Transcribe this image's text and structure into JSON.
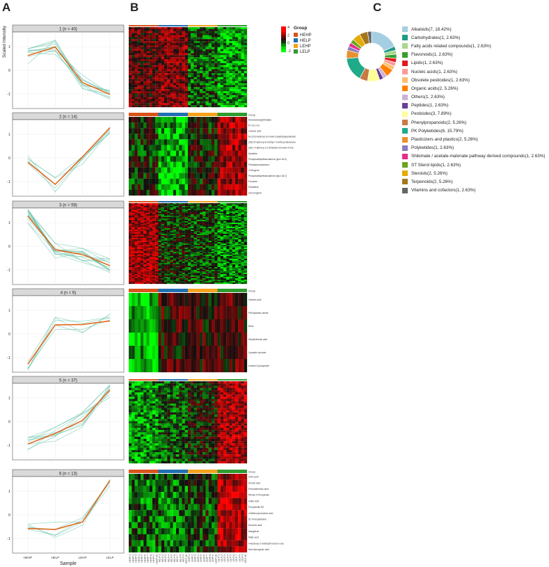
{
  "panels": {
    "a": "A",
    "b": "B",
    "c": "C"
  },
  "trend_plots": {
    "ylabel": "Scaled Intensity",
    "xlabel": "Sample",
    "x_ticks": [
      "HEHP",
      "HELP",
      "LEHP",
      "LELP"
    ],
    "y_ticks": [
      1,
      0,
      -1
    ],
    "trend_color": "#e06b1f",
    "member_color": "#56bba0",
    "clusters": [
      {
        "title": "1 (n = 40)",
        "mean": [
          0.62,
          0.98,
          -0.52,
          -1.02
        ]
      },
      {
        "title": "2 (n = 14)",
        "mean": [
          -0.18,
          -1.12,
          0.05,
          1.28
        ]
      },
      {
        "title": "3 (n = 58)",
        "mean": [
          1.28,
          -0.15,
          -0.35,
          -0.82
        ]
      },
      {
        "title": "4 (n = 6)",
        "mean": [
          -1.28,
          0.38,
          0.4,
          0.55
        ]
      },
      {
        "title": "5 (n = 37)",
        "mean": [
          -0.95,
          -0.5,
          0.05,
          1.35
        ]
      },
      {
        "title": "6 (n = 13)",
        "mean": [
          -0.58,
          -0.62,
          -0.3,
          1.45
        ]
      }
    ]
  },
  "heatmap": {
    "legend_title": "Group",
    "groups": [
      {
        "name": "HEHP",
        "color": "#d95319"
      },
      {
        "name": "HELP",
        "color": "#1f6fb2"
      },
      {
        "name": "LEHP",
        "color": "#f5a21b"
      },
      {
        "name": "LELP",
        "color": "#2f9a2f"
      }
    ],
    "scale_ticks": [
      "4",
      "2",
      "0",
      "-2"
    ],
    "group_label": "Group",
    "sample_labels": [
      "HEHP-1",
      "HEHP-2",
      "HEHP-3",
      "HEHP-4",
      "HEHP-5",
      "HEHP-6",
      "HEHP-7",
      "HEHP-8",
      "HEHP-9",
      "HEHP-10",
      "HELP-1",
      "HELP-2",
      "HELP-3",
      "HELP-4",
      "HELP-5",
      "HELP-6",
      "HELP-7",
      "HELP-8",
      "HELP-9",
      "HELP-10",
      "LEHP-1",
      "LEHP-2",
      "LEHP-3",
      "LEHP-4",
      "LEHP-5",
      "LEHP-6",
      "LEHP-7",
      "LEHP-8",
      "LEHP-9",
      "LEHP-10",
      "LELP-1",
      "LELP-2",
      "LELP-3",
      "LELP-4",
      "LELP-5",
      "LELP-6",
      "LELP-7",
      "LELP-8",
      "LELP-9",
      "LELP-10"
    ],
    "row_labels_2": [
      "Monoisobutylphthalate",
      "PI 16:1-0:0",
      "Linoleic acid",
      "N-(2-(5-Hydroxy-1H-indol-3-yl)ethyl)acetamide",
      "(2S)-5-Hydroxy-6-methyl-7-methoxy-flavanone",
      "(3S)-7-Hydroxy-2,2-dimethyl-chroman-4-one",
      "Nobiletin",
      "Phosphatidylethanolamine (lyso 16:0)",
      "Pentadecanolactone",
      "4-Gingerol",
      "Phosphatidylethanolamine (lyso 18:2)",
      "Fructose",
      "Palmatine",
      "Cleroorganol"
    ],
    "row_labels_4": [
      "Glutaric acid",
      "Phenylacetic amide",
      "Rutin",
      "Dihydroferulic acid",
      "Cyanidin chloride",
      "Inositol 2-phosphate"
    ],
    "row_labels_6": [
      "Citric acid",
      "Ursolic acid",
      "Protocatechuic acid",
      "Ribose 5-Phosphate",
      "Gallic acid",
      "Procyanidin B2",
      "4-Methoxycinnamic acid",
      "DL-Phenylalanine",
      "Succinic acid",
      "Mangiferin",
      "Malic acid",
      "4-Hydroxy-2-methylchroman-2-one",
      "Neochlorogenic acid"
    ]
  },
  "donut": {
    "colors": [
      "#a6cee3",
      "#1f9b85",
      "#a8d88c",
      "#33a02c",
      "#e31a1c",
      "#fb9a99",
      "#fdbf6f",
      "#ff7f00",
      "#cab2d6",
      "#6a3d9a",
      "#ffff99",
      "#c97a43",
      "#1faa8a",
      "#e8902e",
      "#8a7bbf",
      "#e7298a",
      "#66a61e",
      "#e6ab02",
      "#a6761d",
      "#666666"
    ],
    "values": [
      7,
      1,
      1,
      1,
      1,
      1,
      1,
      2,
      1,
      1,
      3,
      2,
      6,
      2,
      1,
      1,
      1,
      2,
      2,
      1
    ],
    "labels": [
      "Alkaloids(7, 18.42%)",
      "Carbohydrates(1, 2.63%)",
      "Fatty acids related compounds(1, 2.63%)",
      "Flavonoids(1, 2.63%)",
      "Lipids(1, 2.63%)",
      "Nucleic acids(1, 2.63%)",
      "Obsolete pesticides(1, 2.63%)",
      "Organic acids(2, 5.26%)",
      "Others(1, 2.63%)",
      "Peptides(1, 2.63%)",
      "Pesticides(3, 7.89%)",
      "Phenylpropanoids(2, 5.26%)",
      "PK  Polyketides(6, 15.79%)",
      "Plasticizers and plastics(2, 5.26%)",
      "Polyketides(1, 2.63%)",
      "Shikimate / acetate-malonate pathway derived compounds(1, 2.63%)",
      "ST  Sterol lipids(1, 2.63%)",
      "Steroids(2, 5.26%)",
      "Terpenoids(2, 5.26%)",
      "Vitamins and cofactors(1, 2.63%)"
    ]
  }
}
